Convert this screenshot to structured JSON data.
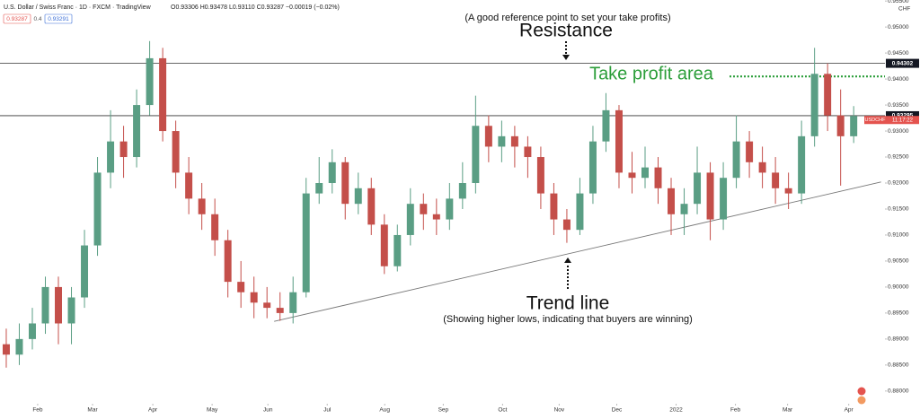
{
  "chart_data": {
    "type": "candlestick",
    "header": {
      "symbol": "U.S. Dollar / Swiss Franc · 1D · FXCM · TradingView",
      "ohlc": "O0.93306 H0.93478 L0.93110 C0.93287 −0.00019 (−0.02%)",
      "boxes": [
        "0.93287",
        "0.4",
        "0.93291"
      ],
      "currency": "CHF"
    },
    "annotations": {
      "note": "(A good reference point to set your take profits)",
      "resistance": "Resistance",
      "take_profit": "Take profit area",
      "trend": "Trend line",
      "trend_note": "(Showing higher lows, indicating that buyers are winning)"
    },
    "up_color": "#5a9e84",
    "down_color": "#c44f4a",
    "categories": [
      null,
      null,
      null,
      null,
      null,
      null,
      null,
      null,
      null,
      null,
      null,
      null,
      null,
      null,
      null,
      null,
      null,
      null,
      null,
      null,
      null,
      null,
      null,
      null,
      null,
      null,
      null,
      null,
      null,
      null,
      null,
      null,
      null,
      null,
      null,
      null,
      null,
      null,
      null,
      null,
      null,
      null,
      null,
      null,
      null,
      null,
      null,
      null,
      null,
      null,
      null,
      null,
      null,
      null,
      null,
      null,
      null,
      null,
      null,
      null,
      null,
      null,
      null,
      null,
      null,
      null
    ],
    "open": [
      0.889,
      0.887,
      0.89,
      0.893,
      0.9,
      0.893,
      0.898,
      0.908,
      0.922,
      0.928,
      0.925,
      0.935,
      0.944,
      0.93,
      0.922,
      0.917,
      0.914,
      0.909,
      0.901,
      0.899,
      0.897,
      0.896,
      0.895,
      0.899,
      0.918,
      0.92,
      0.924,
      0.916,
      0.919,
      0.912,
      0.904,
      0.91,
      0.916,
      0.914,
      0.913,
      0.917,
      0.92,
      0.931,
      0.927,
      0.929,
      0.927,
      0.925,
      0.918,
      0.913,
      0.911,
      0.918,
      0.928,
      0.934,
      0.922,
      0.921,
      0.923,
      0.919,
      0.914,
      0.916,
      0.922,
      0.913,
      0.921,
      0.928,
      0.924,
      0.922,
      0.919,
      0.918,
      0.929,
      0.941,
      0.933,
      0.929
    ],
    "high": [
      0.892,
      0.893,
      0.896,
      0.902,
      0.902,
      0.9,
      0.911,
      0.925,
      0.934,
      0.931,
      0.938,
      0.9473,
      0.946,
      0.932,
      0.925,
      0.92,
      0.917,
      0.911,
      0.905,
      0.902,
      0.9,
      0.899,
      0.902,
      0.921,
      0.925,
      0.9265,
      0.925,
      0.922,
      0.921,
      0.914,
      0.912,
      0.919,
      0.918,
      0.917,
      0.92,
      0.924,
      0.9368,
      0.933,
      0.932,
      0.931,
      0.929,
      0.927,
      0.92,
      0.915,
      0.921,
      0.931,
      0.9373,
      0.935,
      0.926,
      0.927,
      0.925,
      0.921,
      0.919,
      0.927,
      0.924,
      0.924,
      0.933,
      0.93,
      0.927,
      0.925,
      0.922,
      0.932,
      0.946,
      0.943,
      0.938,
      0.9348
    ],
    "low": [
      0.8845,
      0.885,
      0.888,
      0.891,
      0.889,
      0.889,
      0.896,
      0.906,
      0.919,
      0.921,
      0.923,
      0.933,
      0.928,
      0.919,
      0.914,
      0.911,
      0.906,
      0.898,
      0.896,
      0.894,
      0.894,
      0.8935,
      0.893,
      0.898,
      0.916,
      0.918,
      0.913,
      0.914,
      0.91,
      0.9025,
      0.903,
      0.908,
      0.911,
      0.91,
      0.911,
      0.915,
      0.918,
      0.924,
      0.924,
      0.923,
      0.921,
      0.915,
      0.91,
      0.9085,
      0.91,
      0.916,
      0.926,
      0.919,
      0.918,
      0.919,
      0.916,
      0.91,
      0.91,
      0.914,
      0.909,
      0.911,
      0.919,
      0.921,
      0.919,
      0.916,
      0.915,
      0.916,
      0.927,
      0.93,
      0.9195,
      0.9277
    ],
    "close": [
      0.887,
      0.89,
      0.893,
      0.9,
      0.893,
      0.898,
      0.908,
      0.922,
      0.928,
      0.925,
      0.935,
      0.944,
      0.93,
      0.922,
      0.917,
      0.914,
      0.909,
      0.901,
      0.899,
      0.897,
      0.896,
      0.895,
      0.899,
      0.918,
      0.92,
      0.924,
      0.916,
      0.919,
      0.912,
      0.904,
      0.91,
      0.916,
      0.914,
      0.913,
      0.917,
      0.92,
      0.931,
      0.927,
      0.929,
      0.927,
      0.925,
      0.918,
      0.913,
      0.911,
      0.918,
      0.928,
      0.934,
      0.922,
      0.921,
      0.923,
      0.919,
      0.914,
      0.916,
      0.922,
      0.913,
      0.921,
      0.928,
      0.924,
      0.922,
      0.919,
      0.918,
      0.929,
      0.941,
      0.933,
      0.929,
      0.9329
    ],
    "xlim": [
      -0.48,
      67.4
    ],
    "xticks": [
      {
        "value": 2.41,
        "label": "Feb"
      },
      {
        "value": 6.62,
        "label": "Mar"
      },
      {
        "value": 11.24,
        "label": "Apr"
      },
      {
        "value": 15.79,
        "label": "May"
      },
      {
        "value": 20.07,
        "label": "Jun"
      },
      {
        "value": 24.62,
        "label": "Jul"
      },
      {
        "value": 29.03,
        "label": "Aug"
      },
      {
        "value": 33.52,
        "label": "Sep"
      },
      {
        "value": 38.07,
        "label": "Oct"
      },
      {
        "value": 42.41,
        "label": "Nov"
      },
      {
        "value": 46.83,
        "label": "Dec"
      },
      {
        "value": 51.38,
        "label": "2022"
      },
      {
        "value": 55.93,
        "label": "Feb"
      },
      {
        "value": 59.93,
        "label": "Mar"
      },
      {
        "value": 64.62,
        "label": "Apr"
      }
    ],
    "ylim": [
      0.8779,
      0.9552
    ],
    "yticks": [
      {
        "value": 0.88,
        "label": "0.88000"
      },
      {
        "value": 0.885,
        "label": "0.88500"
      },
      {
        "value": 0.89,
        "label": "0.89000"
      },
      {
        "value": 0.895,
        "label": "0.89500"
      },
      {
        "value": 0.9,
        "label": "0.90000"
      },
      {
        "value": 0.905,
        "label": "0.90500"
      },
      {
        "value": 0.91,
        "label": "0.91000"
      },
      {
        "value": 0.915,
        "label": "0.91500"
      },
      {
        "value": 0.92,
        "label": "0.92000"
      },
      {
        "value": 0.925,
        "label": "0.92500"
      },
      {
        "value": 0.93,
        "label": "0.93000"
      },
      {
        "value": 0.935,
        "label": "0.93500"
      },
      {
        "value": 0.94,
        "label": "0.94000"
      },
      {
        "value": 0.945,
        "label": "0.94500"
      },
      {
        "value": 0.95,
        "label": "0.95000"
      },
      {
        "value": 0.955,
        "label": "0.95500"
      }
    ],
    "hlines": [
      0.94302,
      0.93295
    ],
    "take_profit_level": 0.9405,
    "take_profit_color": "#2c9e3a",
    "trendline": {
      "x": [
        20.55,
        67.1
      ],
      "y": [
        0.8934,
        0.9202
      ]
    },
    "price_tag": {
      "symbol": "USDCHF",
      "time": "11:17:22",
      "color": "#e4534e"
    }
  }
}
